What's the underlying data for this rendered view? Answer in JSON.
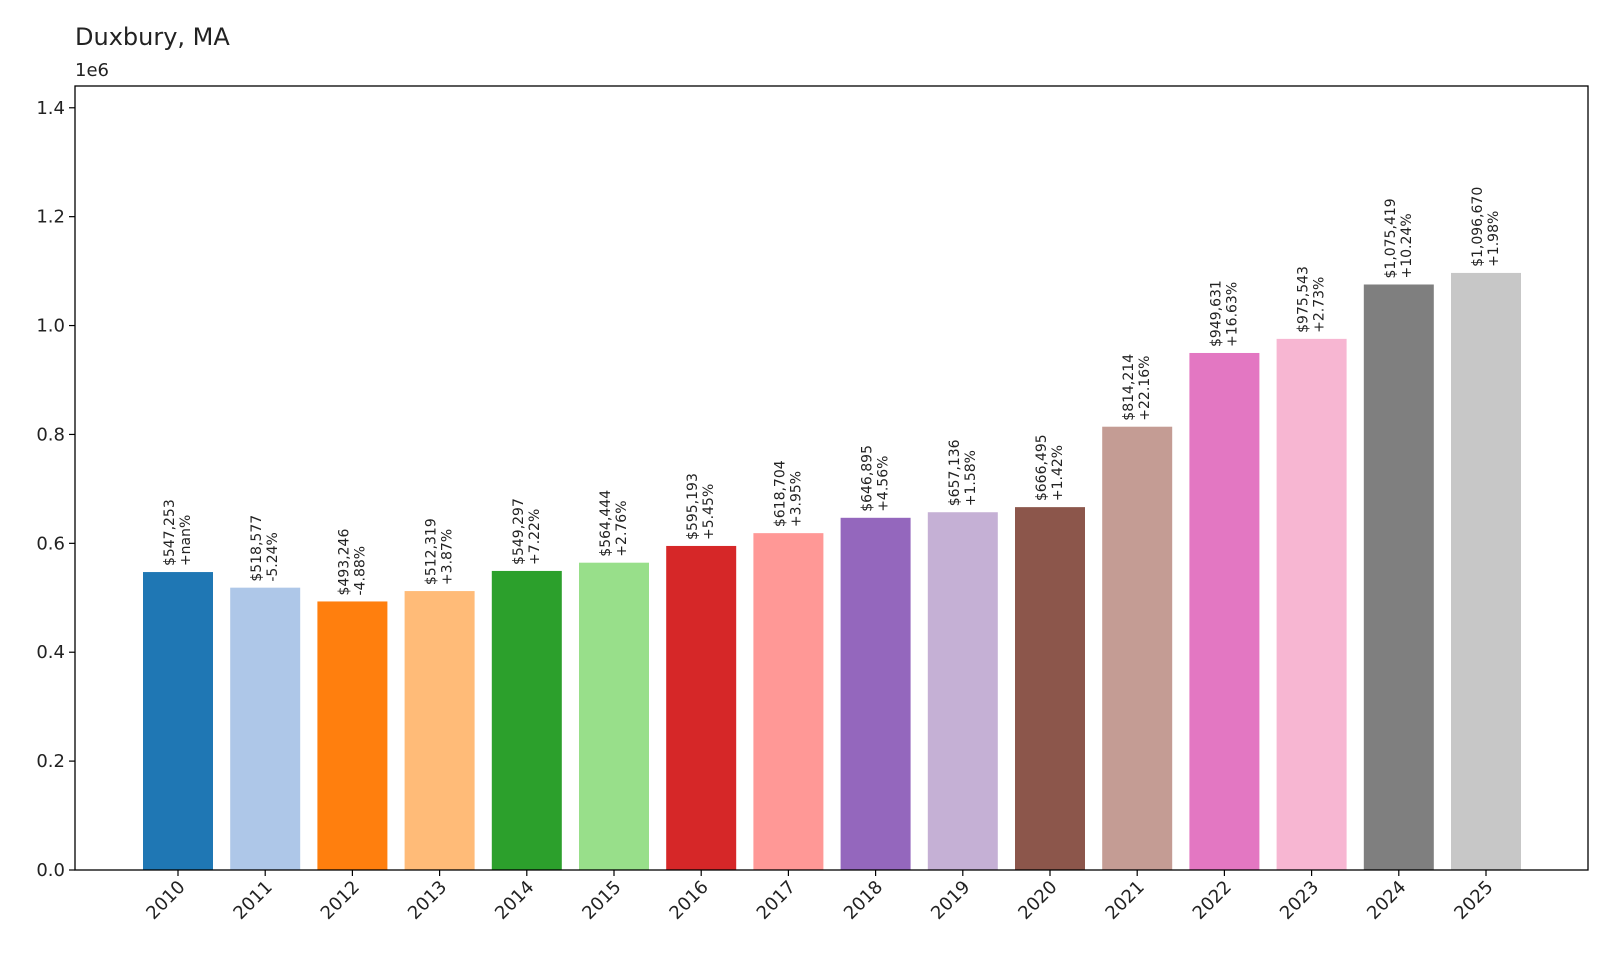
{
  "chart_data": {
    "type": "bar",
    "title": "Duxbury, MA",
    "xlabel": "",
    "ylabel": "",
    "y_offset_label": "1e6",
    "ylim": [
      0,
      1.44
    ],
    "yticks": [
      "0.0",
      "0.2",
      "0.4",
      "0.6",
      "0.8",
      "1.0",
      "1.2",
      "1.4"
    ],
    "categories": [
      "2010",
      "2011",
      "2012",
      "2013",
      "2014",
      "2015",
      "2016",
      "2017",
      "2018",
      "2019",
      "2020",
      "2021",
      "2022",
      "2023",
      "2024",
      "2025"
    ],
    "values": [
      547253,
      518577,
      493246,
      512319,
      549297,
      564444,
      595193,
      618704,
      646895,
      657136,
      666495,
      814214,
      949631,
      975543,
      1075419,
      1096670
    ],
    "value_labels": [
      "$547,253",
      "$518,577",
      "$493,246",
      "$512,319",
      "$549,297",
      "$564,444",
      "$595,193",
      "$618,704",
      "$646,895",
      "$657,136",
      "$666,495",
      "$814,214",
      "$949,631",
      "$975,543",
      "$1,075,419",
      "$1,096,670"
    ],
    "change_labels": [
      "+nan%",
      "-5.24%",
      "-4.88%",
      "+3.87%",
      "+7.22%",
      "+2.76%",
      "+5.45%",
      "+3.95%",
      "+4.56%",
      "+1.58%",
      "+1.42%",
      "+22.16%",
      "+16.63%",
      "+2.73%",
      "+10.24%",
      "+1.98%"
    ],
    "colors": [
      "#1f77b4",
      "#aec7e8",
      "#ff7f0e",
      "#ffbb78",
      "#2ca02c",
      "#98df8a",
      "#d62728",
      "#ff9896",
      "#9467bd",
      "#c5b0d5",
      "#8c564b",
      "#c49c94",
      "#e377c2",
      "#f7b6d2",
      "#7f7f7f",
      "#c7c7c7"
    ],
    "grid": false,
    "legend": "none"
  }
}
